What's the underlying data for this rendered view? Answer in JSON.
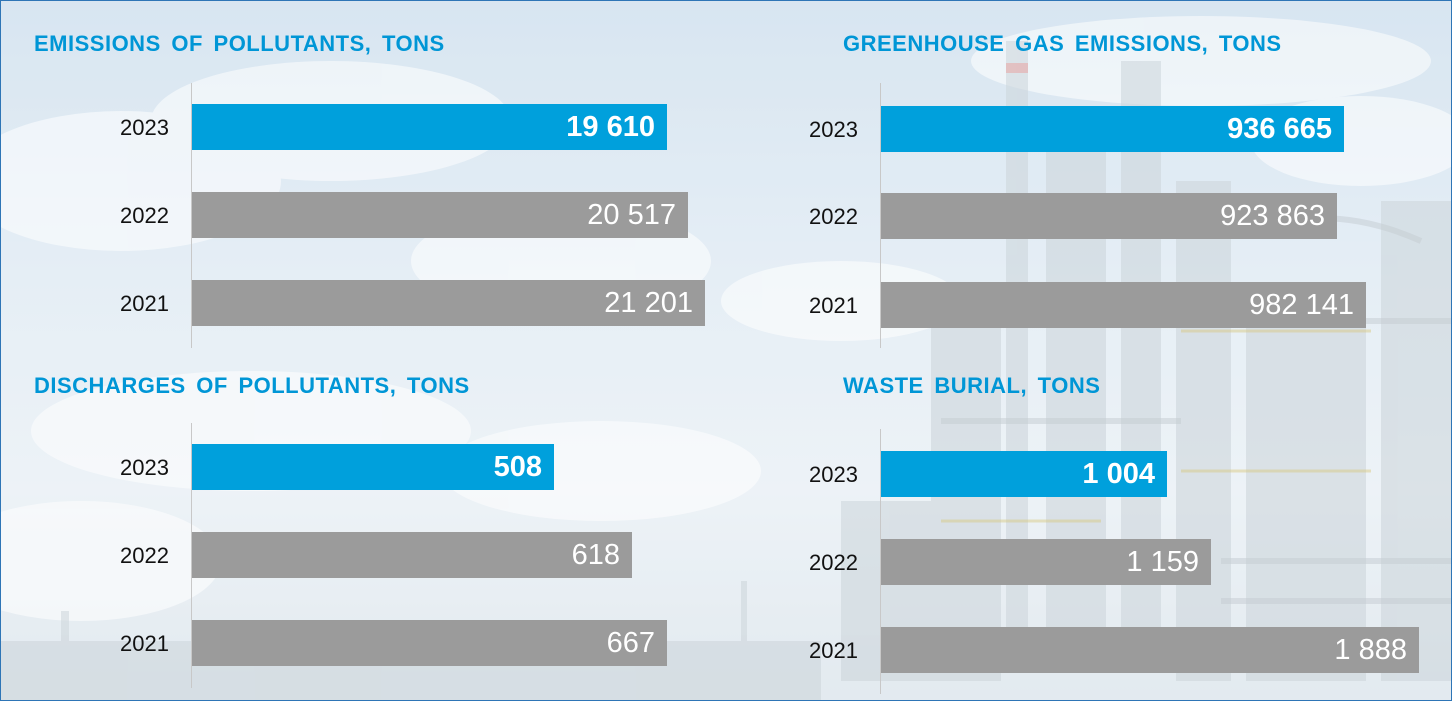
{
  "colors": {
    "title": "#0096d6",
    "highlight": "#00a0dc",
    "bar": "#9b9b9b",
    "value_text": "#ffffff"
  },
  "chart_data": [
    {
      "type": "bar",
      "orientation": "horizontal",
      "title": "EMISSIONS OF POLLUTANTS, TONS",
      "categories": [
        "2023",
        "2022",
        "2021"
      ],
      "values": [
        19610,
        20517,
        21201
      ],
      "value_labels": [
        "19 610",
        "20 517",
        "21 201"
      ],
      "highlight": "2023",
      "xlim": [
        0,
        21201
      ]
    },
    {
      "type": "bar",
      "orientation": "horizontal",
      "title": "GREENHOUSE GAS EMISSIONS, TONS",
      "categories": [
        "2023",
        "2022",
        "2021"
      ],
      "values": [
        936665,
        923863,
        982141
      ],
      "value_labels": [
        "936 665",
        "923 863",
        "982 141"
      ],
      "highlight": "2023",
      "xlim": [
        0,
        982141
      ]
    },
    {
      "type": "bar",
      "orientation": "horizontal",
      "title": "DISCHARGES OF POLLUTANTS, TONS",
      "categories": [
        "2023",
        "2022",
        "2021"
      ],
      "values": [
        508,
        618,
        667
      ],
      "value_labels": [
        "508",
        "618",
        "667"
      ],
      "highlight": "2023",
      "xlim": [
        0,
        667
      ]
    },
    {
      "type": "bar",
      "orientation": "horizontal",
      "title": "WASTE BURIAL, TONS",
      "categories": [
        "2023",
        "2022",
        "2021"
      ],
      "values": [
        1004,
        1159,
        1888
      ],
      "value_labels": [
        "1 004",
        "1 159",
        "1 888"
      ],
      "highlight": "2023",
      "xlim": [
        0,
        1888
      ]
    }
  ]
}
